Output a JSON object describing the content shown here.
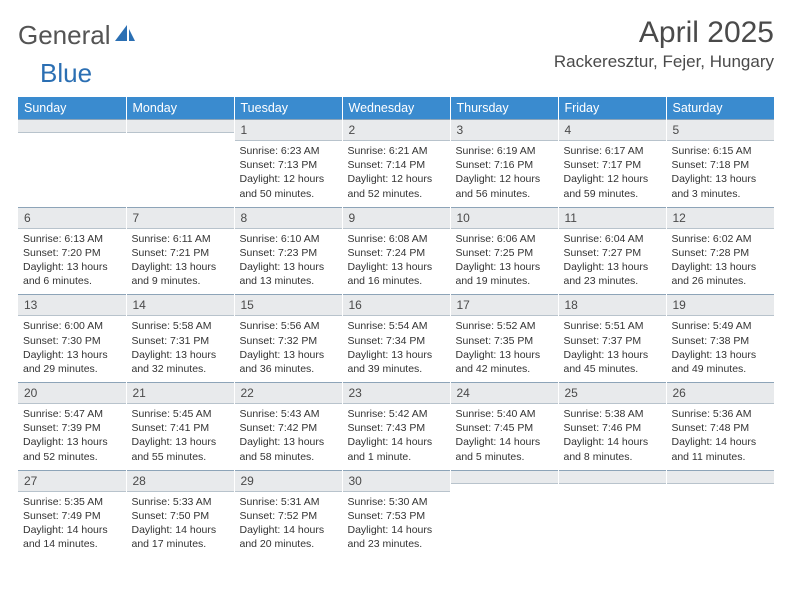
{
  "brand": {
    "part1": "General",
    "part2": "Blue"
  },
  "title": "April 2025",
  "location": "Rackeresztur, Fejer, Hungary",
  "colors": {
    "header_bg": "#3a8bcf",
    "header_text": "#ffffff",
    "daynum_bg": "#e8eaec",
    "daynum_border_top": "#8da4b8",
    "brand_gray": "#545454",
    "brand_blue": "#2b6fb3",
    "text": "#333333"
  },
  "weekdays": [
    "Sunday",
    "Monday",
    "Tuesday",
    "Wednesday",
    "Thursday",
    "Friday",
    "Saturday"
  ],
  "weeks": [
    [
      {
        "n": "",
        "sunrise": "",
        "sunset": "",
        "daylight1": "",
        "daylight2": ""
      },
      {
        "n": "",
        "sunrise": "",
        "sunset": "",
        "daylight1": "",
        "daylight2": ""
      },
      {
        "n": "1",
        "sunrise": "Sunrise: 6:23 AM",
        "sunset": "Sunset: 7:13 PM",
        "daylight1": "Daylight: 12 hours",
        "daylight2": "and 50 minutes."
      },
      {
        "n": "2",
        "sunrise": "Sunrise: 6:21 AM",
        "sunset": "Sunset: 7:14 PM",
        "daylight1": "Daylight: 12 hours",
        "daylight2": "and 52 minutes."
      },
      {
        "n": "3",
        "sunrise": "Sunrise: 6:19 AM",
        "sunset": "Sunset: 7:16 PM",
        "daylight1": "Daylight: 12 hours",
        "daylight2": "and 56 minutes."
      },
      {
        "n": "4",
        "sunrise": "Sunrise: 6:17 AM",
        "sunset": "Sunset: 7:17 PM",
        "daylight1": "Daylight: 12 hours",
        "daylight2": "and 59 minutes."
      },
      {
        "n": "5",
        "sunrise": "Sunrise: 6:15 AM",
        "sunset": "Sunset: 7:18 PM",
        "daylight1": "Daylight: 13 hours",
        "daylight2": "and 3 minutes."
      }
    ],
    [
      {
        "n": "6",
        "sunrise": "Sunrise: 6:13 AM",
        "sunset": "Sunset: 7:20 PM",
        "daylight1": "Daylight: 13 hours",
        "daylight2": "and 6 minutes."
      },
      {
        "n": "7",
        "sunrise": "Sunrise: 6:11 AM",
        "sunset": "Sunset: 7:21 PM",
        "daylight1": "Daylight: 13 hours",
        "daylight2": "and 9 minutes."
      },
      {
        "n": "8",
        "sunrise": "Sunrise: 6:10 AM",
        "sunset": "Sunset: 7:23 PM",
        "daylight1": "Daylight: 13 hours",
        "daylight2": "and 13 minutes."
      },
      {
        "n": "9",
        "sunrise": "Sunrise: 6:08 AM",
        "sunset": "Sunset: 7:24 PM",
        "daylight1": "Daylight: 13 hours",
        "daylight2": "and 16 minutes."
      },
      {
        "n": "10",
        "sunrise": "Sunrise: 6:06 AM",
        "sunset": "Sunset: 7:25 PM",
        "daylight1": "Daylight: 13 hours",
        "daylight2": "and 19 minutes."
      },
      {
        "n": "11",
        "sunrise": "Sunrise: 6:04 AM",
        "sunset": "Sunset: 7:27 PM",
        "daylight1": "Daylight: 13 hours",
        "daylight2": "and 23 minutes."
      },
      {
        "n": "12",
        "sunrise": "Sunrise: 6:02 AM",
        "sunset": "Sunset: 7:28 PM",
        "daylight1": "Daylight: 13 hours",
        "daylight2": "and 26 minutes."
      }
    ],
    [
      {
        "n": "13",
        "sunrise": "Sunrise: 6:00 AM",
        "sunset": "Sunset: 7:30 PM",
        "daylight1": "Daylight: 13 hours",
        "daylight2": "and 29 minutes."
      },
      {
        "n": "14",
        "sunrise": "Sunrise: 5:58 AM",
        "sunset": "Sunset: 7:31 PM",
        "daylight1": "Daylight: 13 hours",
        "daylight2": "and 32 minutes."
      },
      {
        "n": "15",
        "sunrise": "Sunrise: 5:56 AM",
        "sunset": "Sunset: 7:32 PM",
        "daylight1": "Daylight: 13 hours",
        "daylight2": "and 36 minutes."
      },
      {
        "n": "16",
        "sunrise": "Sunrise: 5:54 AM",
        "sunset": "Sunset: 7:34 PM",
        "daylight1": "Daylight: 13 hours",
        "daylight2": "and 39 minutes."
      },
      {
        "n": "17",
        "sunrise": "Sunrise: 5:52 AM",
        "sunset": "Sunset: 7:35 PM",
        "daylight1": "Daylight: 13 hours",
        "daylight2": "and 42 minutes."
      },
      {
        "n": "18",
        "sunrise": "Sunrise: 5:51 AM",
        "sunset": "Sunset: 7:37 PM",
        "daylight1": "Daylight: 13 hours",
        "daylight2": "and 45 minutes."
      },
      {
        "n": "19",
        "sunrise": "Sunrise: 5:49 AM",
        "sunset": "Sunset: 7:38 PM",
        "daylight1": "Daylight: 13 hours",
        "daylight2": "and 49 minutes."
      }
    ],
    [
      {
        "n": "20",
        "sunrise": "Sunrise: 5:47 AM",
        "sunset": "Sunset: 7:39 PM",
        "daylight1": "Daylight: 13 hours",
        "daylight2": "and 52 minutes."
      },
      {
        "n": "21",
        "sunrise": "Sunrise: 5:45 AM",
        "sunset": "Sunset: 7:41 PM",
        "daylight1": "Daylight: 13 hours",
        "daylight2": "and 55 minutes."
      },
      {
        "n": "22",
        "sunrise": "Sunrise: 5:43 AM",
        "sunset": "Sunset: 7:42 PM",
        "daylight1": "Daylight: 13 hours",
        "daylight2": "and 58 minutes."
      },
      {
        "n": "23",
        "sunrise": "Sunrise: 5:42 AM",
        "sunset": "Sunset: 7:43 PM",
        "daylight1": "Daylight: 14 hours",
        "daylight2": "and 1 minute."
      },
      {
        "n": "24",
        "sunrise": "Sunrise: 5:40 AM",
        "sunset": "Sunset: 7:45 PM",
        "daylight1": "Daylight: 14 hours",
        "daylight2": "and 5 minutes."
      },
      {
        "n": "25",
        "sunrise": "Sunrise: 5:38 AM",
        "sunset": "Sunset: 7:46 PM",
        "daylight1": "Daylight: 14 hours",
        "daylight2": "and 8 minutes."
      },
      {
        "n": "26",
        "sunrise": "Sunrise: 5:36 AM",
        "sunset": "Sunset: 7:48 PM",
        "daylight1": "Daylight: 14 hours",
        "daylight2": "and 11 minutes."
      }
    ],
    [
      {
        "n": "27",
        "sunrise": "Sunrise: 5:35 AM",
        "sunset": "Sunset: 7:49 PM",
        "daylight1": "Daylight: 14 hours",
        "daylight2": "and 14 minutes."
      },
      {
        "n": "28",
        "sunrise": "Sunrise: 5:33 AM",
        "sunset": "Sunset: 7:50 PM",
        "daylight1": "Daylight: 14 hours",
        "daylight2": "and 17 minutes."
      },
      {
        "n": "29",
        "sunrise": "Sunrise: 5:31 AM",
        "sunset": "Sunset: 7:52 PM",
        "daylight1": "Daylight: 14 hours",
        "daylight2": "and 20 minutes."
      },
      {
        "n": "30",
        "sunrise": "Sunrise: 5:30 AM",
        "sunset": "Sunset: 7:53 PM",
        "daylight1": "Daylight: 14 hours",
        "daylight2": "and 23 minutes."
      },
      {
        "n": "",
        "sunrise": "",
        "sunset": "",
        "daylight1": "",
        "daylight2": ""
      },
      {
        "n": "",
        "sunrise": "",
        "sunset": "",
        "daylight1": "",
        "daylight2": ""
      },
      {
        "n": "",
        "sunrise": "",
        "sunset": "",
        "daylight1": "",
        "daylight2": ""
      }
    ]
  ]
}
